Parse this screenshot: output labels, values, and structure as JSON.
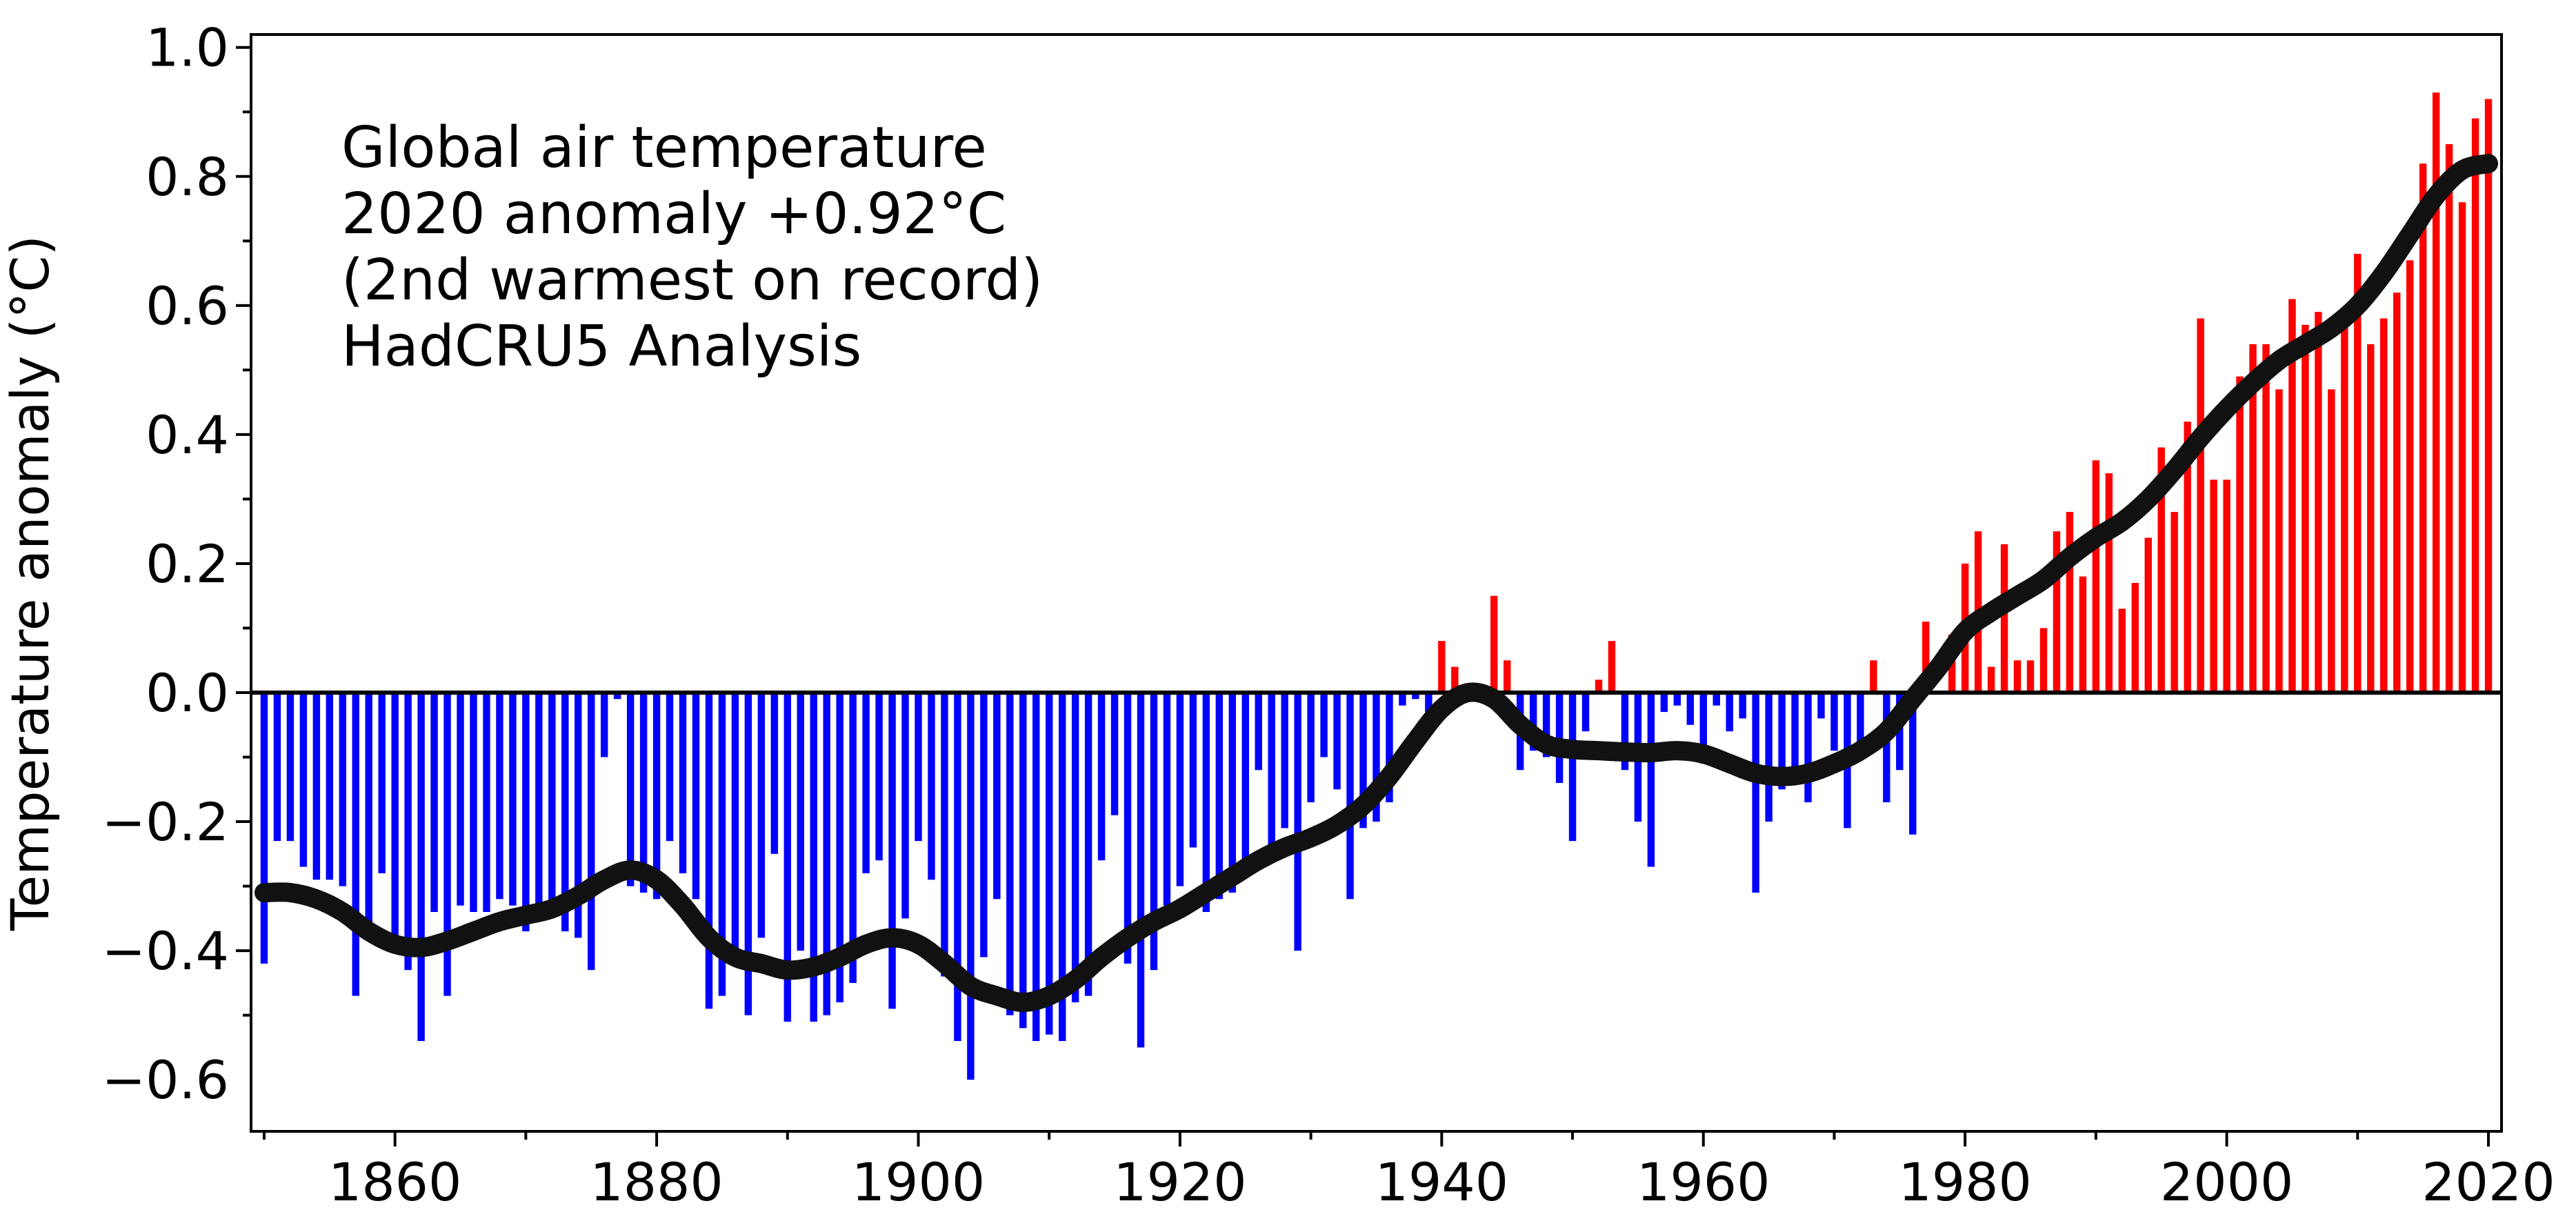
{
  "chart_data": {
    "type": "bar",
    "ylabel": "Temperature anomaly (°C)",
    "xlabel": "",
    "xlim": [
      1849,
      2021
    ],
    "ylim": [
      -0.68,
      1.02
    ],
    "grid": false,
    "positive_color": "#ff0000",
    "negative_color": "#0000ff",
    "smooth_color": "#111111",
    "annotation_lines": [
      "Global air temperature",
      "2020 anomaly +0.92°C",
      "(2nd warmest on record)",
      "HadCRU5 Analysis"
    ],
    "x_ticks": [
      {
        "value": 1860,
        "label": "1860"
      },
      {
        "value": 1880,
        "label": "1880"
      },
      {
        "value": 1900,
        "label": "1900"
      },
      {
        "value": 1920,
        "label": "1920"
      },
      {
        "value": 1940,
        "label": "1940"
      },
      {
        "value": 1960,
        "label": "1960"
      },
      {
        "value": 1980,
        "label": "1980"
      },
      {
        "value": 2000,
        "label": "2000"
      },
      {
        "value": 2020,
        "label": "2020"
      }
    ],
    "y_ticks": [
      {
        "value": 1.0,
        "label": "1.0"
      },
      {
        "value": 0.8,
        "label": "0.8"
      },
      {
        "value": 0.6,
        "label": "0.6"
      },
      {
        "value": 0.4,
        "label": "0.4"
      },
      {
        "value": 0.2,
        "label": "0.2"
      },
      {
        "value": 0.0,
        "label": "0.0"
      },
      {
        "value": -0.2,
        "label": "−0.2"
      },
      {
        "value": -0.4,
        "label": "−0.4"
      },
      {
        "value": -0.6,
        "label": "−0.6"
      }
    ],
    "years": [
      1850,
      1851,
      1852,
      1853,
      1854,
      1855,
      1856,
      1857,
      1858,
      1859,
      1860,
      1861,
      1862,
      1863,
      1864,
      1865,
      1866,
      1867,
      1868,
      1869,
      1870,
      1871,
      1872,
      1873,
      1874,
      1875,
      1876,
      1877,
      1878,
      1879,
      1880,
      1881,
      1882,
      1883,
      1884,
      1885,
      1886,
      1887,
      1888,
      1889,
      1890,
      1891,
      1892,
      1893,
      1894,
      1895,
      1896,
      1897,
      1898,
      1899,
      1900,
      1901,
      1902,
      1903,
      1904,
      1905,
      1906,
      1907,
      1908,
      1909,
      1910,
      1911,
      1912,
      1913,
      1914,
      1915,
      1916,
      1917,
      1918,
      1919,
      1920,
      1921,
      1922,
      1923,
      1924,
      1925,
      1926,
      1927,
      1928,
      1929,
      1930,
      1931,
      1932,
      1933,
      1934,
      1935,
      1936,
      1937,
      1938,
      1939,
      1940,
      1941,
      1942,
      1943,
      1944,
      1945,
      1946,
      1947,
      1948,
      1949,
      1950,
      1951,
      1952,
      1953,
      1954,
      1955,
      1956,
      1957,
      1958,
      1959,
      1960,
      1961,
      1962,
      1963,
      1964,
      1965,
      1966,
      1967,
      1968,
      1969,
      1970,
      1971,
      1972,
      1973,
      1974,
      1975,
      1976,
      1977,
      1978,
      1979,
      1980,
      1981,
      1982,
      1983,
      1984,
      1985,
      1986,
      1987,
      1988,
      1989,
      1990,
      1991,
      1992,
      1993,
      1994,
      1995,
      1996,
      1997,
      1998,
      1999,
      2000,
      2001,
      2002,
      2003,
      2004,
      2005,
      2006,
      2007,
      2008,
      2009,
      2010,
      2011,
      2012,
      2013,
      2014,
      2015,
      2016,
      2017,
      2018,
      2019,
      2020
    ],
    "anomalies": [
      -0.42,
      -0.23,
      -0.23,
      -0.27,
      -0.29,
      -0.29,
      -0.3,
      -0.47,
      -0.38,
      -0.28,
      -0.4,
      -0.43,
      -0.54,
      -0.34,
      -0.47,
      -0.33,
      -0.34,
      -0.34,
      -0.32,
      -0.33,
      -0.37,
      -0.35,
      -0.33,
      -0.37,
      -0.38,
      -0.43,
      -0.1,
      -0.01,
      -0.3,
      -0.31,
      -0.32,
      -0.23,
      -0.28,
      -0.32,
      -0.49,
      -0.47,
      -0.42,
      -0.5,
      -0.38,
      -0.25,
      -0.51,
      -0.4,
      -0.51,
      -0.5,
      -0.48,
      -0.45,
      -0.28,
      -0.26,
      -0.49,
      -0.35,
      -0.23,
      -0.29,
      -0.44,
      -0.54,
      -0.6,
      -0.41,
      -0.32,
      -0.5,
      -0.52,
      -0.54,
      -0.53,
      -0.54,
      -0.48,
      -0.47,
      -0.26,
      -0.19,
      -0.42,
      -0.55,
      -0.43,
      -0.33,
      -0.3,
      -0.24,
      -0.34,
      -0.32,
      -0.31,
      -0.28,
      -0.12,
      -0.26,
      -0.21,
      -0.4,
      -0.17,
      -0.1,
      -0.15,
      -0.32,
      -0.21,
      -0.2,
      -0.17,
      -0.02,
      -0.01,
      -0.03,
      0.08,
      0.04,
      -0.01,
      -0.01,
      0.15,
      0.05,
      -0.12,
      -0.09,
      -0.1,
      -0.14,
      -0.23,
      -0.06,
      0.02,
      0.08,
      -0.12,
      -0.2,
      -0.27,
      -0.03,
      -0.02,
      -0.05,
      -0.11,
      -0.02,
      -0.06,
      -0.04,
      -0.31,
      -0.2,
      -0.15,
      -0.13,
      -0.17,
      -0.04,
      -0.09,
      -0.21,
      -0.1,
      0.05,
      -0.17,
      -0.12,
      -0.22,
      0.11,
      0.0,
      0.09,
      0.2,
      0.25,
      0.04,
      0.23,
      0.05,
      0.05,
      0.1,
      0.25,
      0.28,
      0.18,
      0.36,
      0.34,
      0.13,
      0.17,
      0.24,
      0.38,
      0.28,
      0.42,
      0.58,
      0.33,
      0.33,
      0.49,
      0.54,
      0.54,
      0.47,
      0.61,
      0.57,
      0.59,
      0.47,
      0.58,
      0.68,
      0.54,
      0.58,
      0.62,
      0.67,
      0.82,
      0.93,
      0.85,
      0.76,
      0.89,
      0.92
    ],
    "smoothed": [
      {
        "x": 1850,
        "y": -0.31
      },
      {
        "x": 1852,
        "y": -0.31
      },
      {
        "x": 1854,
        "y": -0.32
      },
      {
        "x": 1856,
        "y": -0.34
      },
      {
        "x": 1858,
        "y": -0.37
      },
      {
        "x": 1860,
        "y": -0.39
      },
      {
        "x": 1862,
        "y": -0.395
      },
      {
        "x": 1864,
        "y": -0.385
      },
      {
        "x": 1866,
        "y": -0.37
      },
      {
        "x": 1868,
        "y": -0.355
      },
      {
        "x": 1870,
        "y": -0.345
      },
      {
        "x": 1872,
        "y": -0.335
      },
      {
        "x": 1874,
        "y": -0.315
      },
      {
        "x": 1876,
        "y": -0.29
      },
      {
        "x": 1878,
        "y": -0.275
      },
      {
        "x": 1880,
        "y": -0.29
      },
      {
        "x": 1882,
        "y": -0.33
      },
      {
        "x": 1884,
        "y": -0.38
      },
      {
        "x": 1886,
        "y": -0.41
      },
      {
        "x": 1888,
        "y": -0.42
      },
      {
        "x": 1890,
        "y": -0.43
      },
      {
        "x": 1892,
        "y": -0.425
      },
      {
        "x": 1894,
        "y": -0.41
      },
      {
        "x": 1896,
        "y": -0.39
      },
      {
        "x": 1898,
        "y": -0.38
      },
      {
        "x": 1900,
        "y": -0.39
      },
      {
        "x": 1902,
        "y": -0.42
      },
      {
        "x": 1904,
        "y": -0.455
      },
      {
        "x": 1906,
        "y": -0.47
      },
      {
        "x": 1908,
        "y": -0.48
      },
      {
        "x": 1910,
        "y": -0.47
      },
      {
        "x": 1912,
        "y": -0.445
      },
      {
        "x": 1914,
        "y": -0.41
      },
      {
        "x": 1916,
        "y": -0.38
      },
      {
        "x": 1918,
        "y": -0.355
      },
      {
        "x": 1920,
        "y": -0.335
      },
      {
        "x": 1922,
        "y": -0.31
      },
      {
        "x": 1924,
        "y": -0.285
      },
      {
        "x": 1926,
        "y": -0.26
      },
      {
        "x": 1928,
        "y": -0.24
      },
      {
        "x": 1930,
        "y": -0.225
      },
      {
        "x": 1932,
        "y": -0.205
      },
      {
        "x": 1934,
        "y": -0.175
      },
      {
        "x": 1936,
        "y": -0.13
      },
      {
        "x": 1938,
        "y": -0.075
      },
      {
        "x": 1940,
        "y": -0.025
      },
      {
        "x": 1942,
        "y": 0.0
      },
      {
        "x": 1944,
        "y": -0.01
      },
      {
        "x": 1946,
        "y": -0.05
      },
      {
        "x": 1948,
        "y": -0.08
      },
      {
        "x": 1950,
        "y": -0.088
      },
      {
        "x": 1952,
        "y": -0.09
      },
      {
        "x": 1954,
        "y": -0.092
      },
      {
        "x": 1956,
        "y": -0.093
      },
      {
        "x": 1958,
        "y": -0.09
      },
      {
        "x": 1960,
        "y": -0.095
      },
      {
        "x": 1962,
        "y": -0.11
      },
      {
        "x": 1964,
        "y": -0.125
      },
      {
        "x": 1966,
        "y": -0.13
      },
      {
        "x": 1968,
        "y": -0.125
      },
      {
        "x": 1970,
        "y": -0.11
      },
      {
        "x": 1972,
        "y": -0.09
      },
      {
        "x": 1974,
        "y": -0.06
      },
      {
        "x": 1976,
        "y": -0.01
      },
      {
        "x": 1978,
        "y": 0.04
      },
      {
        "x": 1980,
        "y": 0.095
      },
      {
        "x": 1982,
        "y": 0.125
      },
      {
        "x": 1984,
        "y": 0.15
      },
      {
        "x": 1986,
        "y": 0.175
      },
      {
        "x": 1988,
        "y": 0.21
      },
      {
        "x": 1990,
        "y": 0.24
      },
      {
        "x": 1992,
        "y": 0.265
      },
      {
        "x": 1994,
        "y": 0.3
      },
      {
        "x": 1996,
        "y": 0.345
      },
      {
        "x": 1998,
        "y": 0.395
      },
      {
        "x": 2000,
        "y": 0.44
      },
      {
        "x": 2002,
        "y": 0.48
      },
      {
        "x": 2004,
        "y": 0.515
      },
      {
        "x": 2006,
        "y": 0.54
      },
      {
        "x": 2008,
        "y": 0.565
      },
      {
        "x": 2010,
        "y": 0.6
      },
      {
        "x": 2012,
        "y": 0.65
      },
      {
        "x": 2014,
        "y": 0.71
      },
      {
        "x": 2016,
        "y": 0.77
      },
      {
        "x": 2018,
        "y": 0.81
      },
      {
        "x": 2020,
        "y": 0.82
      }
    ]
  }
}
